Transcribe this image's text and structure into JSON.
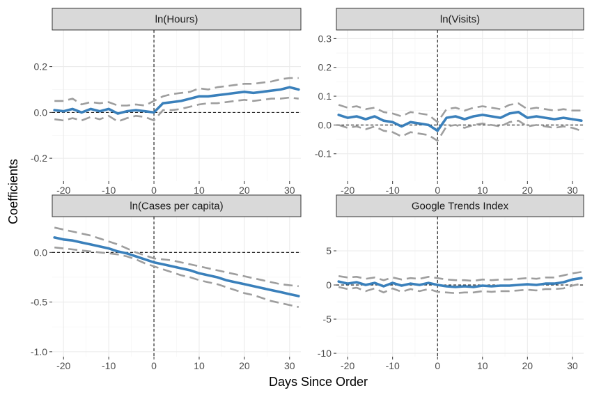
{
  "chart_data": {
    "type": "line",
    "xlabel": "Days Since Order",
    "ylabel": "Coefficients",
    "xlim": [
      -22.5,
      32.5
    ],
    "x_ticks": [
      -20,
      -10,
      0,
      10,
      20,
      30
    ],
    "x_tick_labels": [
      "-20",
      "-10",
      "0",
      "10",
      "20",
      "30"
    ],
    "grid": true,
    "panels": [
      {
        "title": "ln(Hours)",
        "ylim": [
          -0.3,
          0.36
        ],
        "y_ticks": [
          -0.2,
          0.0,
          0.2
        ],
        "y_tick_labels": [
          "-0.2",
          "0.0",
          "0.2"
        ],
        "x": [
          -22,
          -20,
          -18,
          -16,
          -14,
          -12,
          -10,
          -8,
          -6,
          -4,
          -2,
          0,
          2,
          4,
          6,
          8,
          10,
          12,
          14,
          16,
          18,
          20,
          22,
          24,
          26,
          28,
          30,
          32
        ],
        "estimate": [
          0.01,
          0.005,
          0.015,
          0.0,
          0.015,
          0.005,
          0.015,
          -0.005,
          0.005,
          0.01,
          0.005,
          0.0,
          0.04,
          0.045,
          0.05,
          0.06,
          0.07,
          0.07,
          0.075,
          0.08,
          0.085,
          0.09,
          0.085,
          0.09,
          0.095,
          0.1,
          0.11,
          0.1
        ],
        "upper": [
          0.05,
          0.05,
          0.06,
          0.035,
          0.045,
          0.04,
          0.045,
          0.03,
          0.03,
          0.035,
          0.03,
          0.05,
          0.07,
          0.08,
          0.085,
          0.09,
          0.105,
          0.1,
          0.11,
          0.115,
          0.12,
          0.125,
          0.125,
          0.13,
          0.135,
          0.145,
          0.15,
          0.15
        ],
        "lower": [
          -0.03,
          -0.035,
          -0.025,
          -0.035,
          -0.02,
          -0.03,
          -0.015,
          -0.04,
          -0.025,
          -0.015,
          -0.02,
          -0.035,
          0.01,
          0.01,
          0.015,
          0.025,
          0.035,
          0.04,
          0.04,
          0.045,
          0.05,
          0.055,
          0.05,
          0.055,
          0.06,
          0.06,
          0.065,
          0.06
        ]
      },
      {
        "title": "ln(Visits)",
        "ylim": [
          -0.195,
          0.33
        ],
        "y_ticks": [
          -0.1,
          0.0,
          0.1,
          0.2,
          0.3
        ],
        "y_tick_labels": [
          "-0.1",
          "0.0",
          "0.1",
          "0.2",
          "0.3"
        ],
        "x": [
          -22,
          -20,
          -18,
          -16,
          -14,
          -12,
          -10,
          -8,
          -6,
          -4,
          -2,
          0,
          2,
          4,
          6,
          8,
          10,
          12,
          14,
          16,
          18,
          20,
          22,
          24,
          26,
          28,
          30,
          32
        ],
        "estimate": [
          0.035,
          0.025,
          0.03,
          0.02,
          0.03,
          0.015,
          0.01,
          -0.005,
          0.01,
          0.005,
          0.0,
          -0.02,
          0.025,
          0.03,
          0.02,
          0.03,
          0.035,
          0.03,
          0.025,
          0.04,
          0.045,
          0.025,
          0.03,
          0.025,
          0.02,
          0.025,
          0.02,
          0.015
        ],
        "upper": [
          0.07,
          0.06,
          0.065,
          0.055,
          0.06,
          0.045,
          0.04,
          0.03,
          0.045,
          0.04,
          0.035,
          0.01,
          0.055,
          0.06,
          0.05,
          0.06,
          0.065,
          0.06,
          0.055,
          0.07,
          0.075,
          0.055,
          0.06,
          0.055,
          0.05,
          0.055,
          0.05,
          0.05
        ],
        "lower": [
          0.0,
          -0.01,
          -0.005,
          -0.015,
          -0.005,
          -0.02,
          -0.025,
          -0.04,
          -0.025,
          -0.03,
          -0.035,
          -0.055,
          -0.005,
          0.0,
          -0.01,
          0.0,
          0.005,
          0.0,
          -0.005,
          0.01,
          0.015,
          -0.005,
          0.0,
          -0.005,
          -0.01,
          -0.005,
          -0.01,
          -0.02
        ]
      },
      {
        "title": "ln(Cases per capita)",
        "ylim": [
          -1.05,
          0.36
        ],
        "y_ticks": [
          -1.0,
          -0.5,
          0.0
        ],
        "y_tick_labels": [
          "-1.0",
          "-0.5",
          "0.0"
        ],
        "x": [
          -22,
          -20,
          -18,
          -16,
          -14,
          -12,
          -10,
          -8,
          -6,
          -4,
          -2,
          0,
          2,
          4,
          6,
          8,
          10,
          12,
          14,
          16,
          18,
          20,
          22,
          24,
          26,
          28,
          30,
          32
        ],
        "estimate": [
          0.15,
          0.13,
          0.12,
          0.1,
          0.08,
          0.06,
          0.04,
          0.01,
          -0.01,
          -0.04,
          -0.07,
          -0.1,
          -0.12,
          -0.14,
          -0.16,
          -0.18,
          -0.21,
          -0.23,
          -0.25,
          -0.28,
          -0.3,
          -0.32,
          -0.34,
          -0.36,
          -0.38,
          -0.4,
          -0.42,
          -0.44
        ],
        "upper": [
          0.25,
          0.23,
          0.21,
          0.19,
          0.17,
          0.14,
          0.11,
          0.08,
          0.04,
          0.0,
          -0.03,
          -0.06,
          -0.07,
          -0.08,
          -0.1,
          -0.12,
          -0.14,
          -0.16,
          -0.18,
          -0.2,
          -0.22,
          -0.24,
          -0.26,
          -0.28,
          -0.3,
          -0.32,
          -0.33,
          -0.34
        ],
        "lower": [
          0.05,
          0.04,
          0.03,
          0.02,
          0.01,
          0.0,
          -0.01,
          -0.02,
          -0.04,
          -0.07,
          -0.11,
          -0.14,
          -0.17,
          -0.2,
          -0.23,
          -0.25,
          -0.28,
          -0.3,
          -0.32,
          -0.35,
          -0.38,
          -0.41,
          -0.43,
          -0.46,
          -0.49,
          -0.51,
          -0.53,
          -0.55
        ]
      },
      {
        "title": "Google Trends Index",
        "ylim": [
          -10.5,
          10.0
        ],
        "y_ticks": [
          -10,
          -5,
          0,
          5
        ],
        "y_tick_labels": [
          "-10",
          "-5",
          "0",
          "5"
        ],
        "x": [
          -22,
          -20,
          -18,
          -16,
          -14,
          -12,
          -10,
          -8,
          -6,
          -4,
          -2,
          0,
          2,
          4,
          6,
          8,
          10,
          12,
          14,
          16,
          18,
          20,
          22,
          24,
          26,
          28,
          30,
          32
        ],
        "estimate": [
          0.5,
          0.2,
          0.4,
          0.0,
          0.3,
          -0.2,
          0.3,
          -0.1,
          0.2,
          0.0,
          0.3,
          0.0,
          -0.2,
          -0.3,
          -0.2,
          -0.3,
          -0.1,
          -0.2,
          -0.1,
          -0.1,
          0.0,
          0.1,
          0.0,
          0.2,
          0.2,
          0.4,
          0.8,
          1.0
        ],
        "upper": [
          1.3,
          1.1,
          1.2,
          0.9,
          1.1,
          0.7,
          1.1,
          0.8,
          1.0,
          0.9,
          1.2,
          1.0,
          0.8,
          0.7,
          0.7,
          0.6,
          0.8,
          0.7,
          0.8,
          0.8,
          0.9,
          1.0,
          0.9,
          1.1,
          1.1,
          1.4,
          1.7,
          1.9
        ],
        "lower": [
          -0.3,
          -0.6,
          -0.4,
          -0.9,
          -0.5,
          -1.1,
          -0.5,
          -1.0,
          -0.6,
          -0.9,
          -0.6,
          -1.0,
          -1.1,
          -1.2,
          -1.1,
          -1.1,
          -0.9,
          -1.0,
          -0.9,
          -0.9,
          -0.8,
          -0.7,
          -0.8,
          -0.6,
          -0.6,
          -0.5,
          -0.1,
          0.2
        ]
      }
    ]
  }
}
